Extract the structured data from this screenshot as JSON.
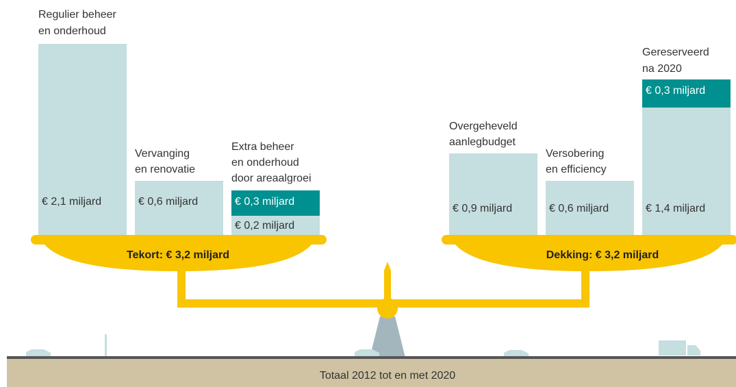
{
  "left_items": [
    {
      "label_lines": [
        "Regulier beheer",
        "en onderhoud"
      ],
      "values": [
        "€ 2,1 miljard"
      ]
    },
    {
      "label_lines": [
        "Vervanging",
        "en renovatie"
      ],
      "values": [
        "€ 0,6 miljard"
      ]
    },
    {
      "label_lines": [
        "Extra beheer",
        "en onderhoud",
        "door areaalgroei"
      ],
      "values": [
        "€ 0,3 miljard",
        "€ 0,2 miljard"
      ]
    }
  ],
  "left_total": "Tekort: € 3,2 miljard",
  "right_items": [
    {
      "label_lines": [
        "Overgeheveld",
        "aanlegbudget"
      ],
      "values": [
        "€ 0,9 miljard"
      ]
    },
    {
      "label_lines": [
        "Versobering",
        "en efficiency"
      ],
      "values": [
        "€ 0,6 miljard"
      ]
    },
    {
      "label_lines": [
        "Gereserveerd",
        "na 2020"
      ],
      "values": [
        "€ 0,3 miljard",
        "€ 1,4 miljard"
      ]
    }
  ],
  "right_total": "Dekking: € 3,2 miljard",
  "footer": "Totaal 2012 tot en met 2020"
}
